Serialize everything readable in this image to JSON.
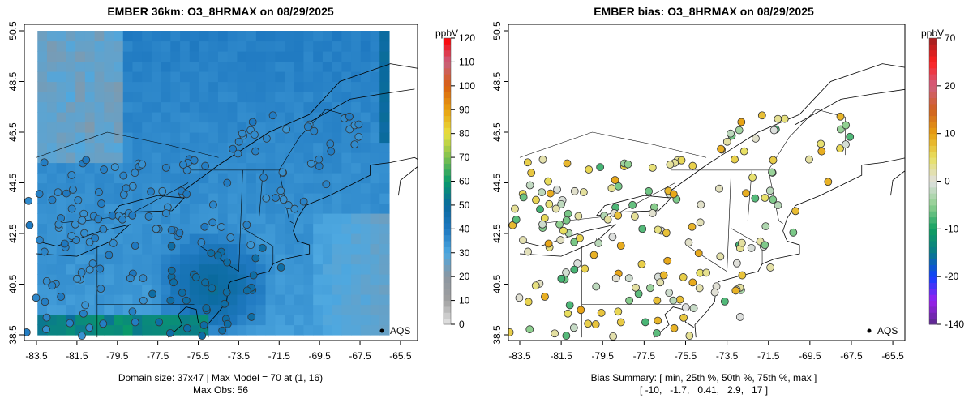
{
  "left_panel": {
    "title": "EMBER 36km: O3_8HRMAX on 08/29/2025",
    "footer_line1": "Domain size: 37x47 | Max Model = 70 at (1, 16)",
    "footer_line2": "Max Obs: 56",
    "legend_label": "AQS",
    "colorbar": {
      "unit": "ppbV",
      "ticks": [
        "0",
        "10",
        "20",
        "30",
        "40",
        "50",
        "60",
        "70",
        "80",
        "90",
        "100",
        "110",
        "120"
      ],
      "colors": [
        "#e6e6e6",
        "#a0a0a0",
        "#8c96a0",
        "#4ea8e0",
        "#1e78c0",
        "#0a6a9e",
        "#0a9a6a",
        "#7cc050",
        "#e8e040",
        "#e8a010",
        "#d86010",
        "#c86080",
        "#ff0000"
      ]
    }
  },
  "right_panel": {
    "title": "EMBER bias: O3_8HRMAX on 08/29/2025",
    "footer_line1": "Bias Summary: [ min, 25th %, 50th %, 75th %, max ]",
    "footer_line2": "[ -10,   -1.7,   0.41,   2.9,   17 ]",
    "legend_label": "AQS",
    "colorbar": {
      "unit": "ppbV",
      "ticks": [
        "-140",
        "-20",
        "-10",
        "0",
        "10",
        "20",
        "70"
      ],
      "colors": [
        "#5a2a8a",
        "#9a20f0",
        "#1040ff",
        "#087a8a",
        "#10a060",
        "#90d090",
        "#e0e0e0",
        "#e8e060",
        "#e8a010",
        "#d06020",
        "#d06080",
        "#ff2020",
        "#a02020"
      ]
    }
  },
  "x_ticks": [
    "-83.5",
    "-81.5",
    "-79.5",
    "-77.5",
    "-75.5",
    "-73.5",
    "-71.5",
    "-69.5",
    "-67.5",
    "-65.5"
  ],
  "y_ticks": [
    "38.5",
    "40.5",
    "42.5",
    "44.5",
    "46.5",
    "48.5",
    "50.5"
  ]
}
